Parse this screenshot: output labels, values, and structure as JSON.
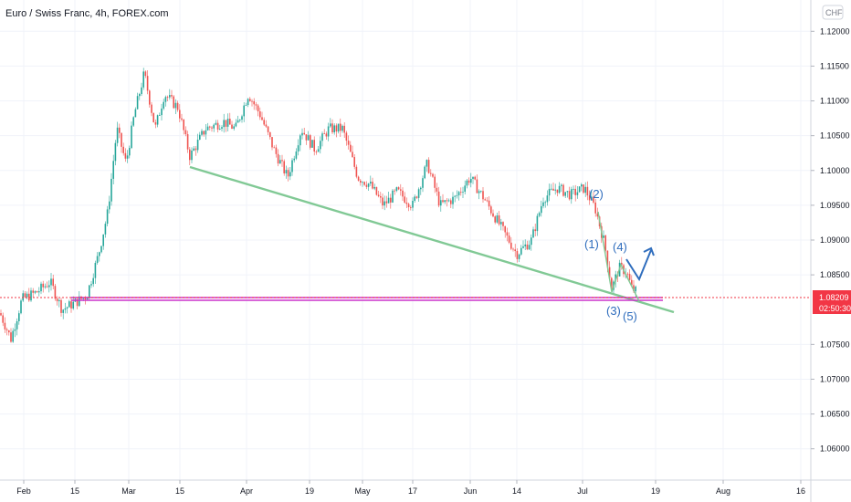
{
  "chart_data": {
    "type": "candlestick",
    "title": "Euro / Swiss Franc, 4h, FOREX.com",
    "currency": "CHF",
    "ylim": [
      1.0555,
      1.1245
    ],
    "y_ticks": [
      "1.12000",
      "1.11500",
      "1.11000",
      "1.10500",
      "1.10000",
      "1.09500",
      "1.09000",
      "1.08500",
      "1.08209",
      "1.07500",
      "1.07000",
      "1.06500",
      "1.06000"
    ],
    "x_ticks": [
      "Feb",
      "15",
      "Mar",
      "15",
      "Apr",
      "19",
      "May",
      "17",
      "Jun",
      "14",
      "Jul",
      "19",
      "Aug",
      "16"
    ],
    "last_price": "1.08209",
    "countdown": "02:50:30",
    "wave_labels": [
      "(1)",
      "(2)",
      "(3)",
      "(4)",
      "(5)"
    ],
    "colors": {
      "up": "#26a69a",
      "down": "#ef5350",
      "trendline": "#81c995",
      "support": "#cc33cc",
      "wave": "#2f6dbd",
      "price": "#f23645"
    }
  }
}
